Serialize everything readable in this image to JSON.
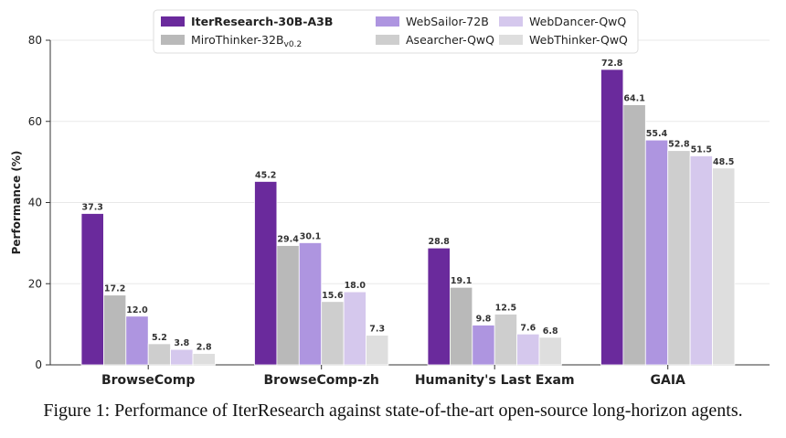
{
  "chart_data": {
    "type": "bar",
    "title": "",
    "xlabel": "",
    "ylabel": "Performance (%)",
    "ylim": [
      0,
      80
    ],
    "yticks": [
      0,
      20,
      40,
      60,
      80
    ],
    "grid": true,
    "legend_position": "top-center",
    "categories": [
      "BrowseComp",
      "BrowseComp-zh",
      "Humanity's Last Exam",
      "GAIA"
    ],
    "series": [
      {
        "name": "IterResearch-30B-A3B",
        "bold": true,
        "color": "#6a2a9c",
        "values": [
          37.3,
          45.2,
          28.8,
          72.8
        ]
      },
      {
        "name": "MiroThinker-32B",
        "subscript": "v0.2",
        "color": "#b9b9b9",
        "values": [
          17.2,
          29.4,
          19.1,
          64.1
        ]
      },
      {
        "name": "WebSailor-72B",
        "color": "#ae95e0",
        "values": [
          12.0,
          30.1,
          9.8,
          55.4
        ]
      },
      {
        "name": "Asearcher-QwQ",
        "color": "#cecece",
        "values": [
          5.2,
          15.6,
          12.5,
          52.8
        ]
      },
      {
        "name": "WebDancer-QwQ",
        "color": "#d5c8ed",
        "values": [
          3.8,
          18.0,
          7.6,
          51.5
        ]
      },
      {
        "name": "WebThinker-QwQ",
        "color": "#dedede",
        "values": [
          2.8,
          7.3,
          6.8,
          48.5
        ]
      }
    ]
  },
  "caption": "Figure 1: Performance of IterResearch against state-of-the-art open-source long-horizon agents."
}
